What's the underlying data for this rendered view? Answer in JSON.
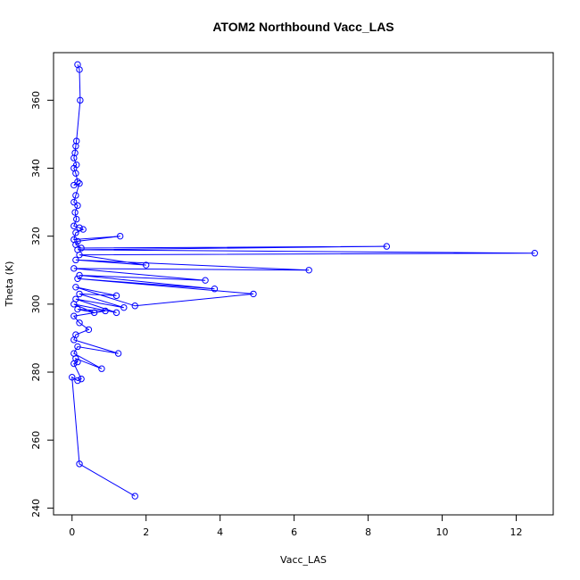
{
  "chart_data": {
    "type": "line",
    "title": "ATOM2 Northbound Vacc_LAS",
    "xlabel": "Vacc_LAS",
    "ylabel": "Theta (K)",
    "xlim": [
      -0.5,
      13.0
    ],
    "ylim": [
      238,
      374
    ],
    "xticks": [
      0,
      2,
      4,
      6,
      8,
      10,
      12
    ],
    "yticks": [
      240,
      260,
      280,
      300,
      320,
      340,
      360
    ],
    "grid": false,
    "legend": "none",
    "line_color": "#0000ff",
    "marker": "open-circle",
    "series": [
      {
        "values": [
          [
            0.15,
            370.5
          ],
          [
            0.2,
            369.0
          ],
          [
            0.22,
            360.0
          ],
          [
            0.12,
            348.0
          ],
          [
            0.1,
            346.5
          ],
          [
            0.08,
            344.5
          ],
          [
            0.05,
            343.0
          ],
          [
            0.12,
            341.0
          ],
          [
            0.05,
            340.0
          ],
          [
            0.1,
            338.5
          ],
          [
            0.15,
            336.0
          ],
          [
            0.05,
            335.0
          ],
          [
            0.2,
            335.5
          ],
          [
            0.1,
            332.0
          ],
          [
            0.05,
            330.0
          ],
          [
            0.15,
            329.0
          ],
          [
            0.08,
            327.0
          ],
          [
            0.12,
            325.0
          ],
          [
            0.05,
            323.0
          ],
          [
            0.2,
            322.5
          ],
          [
            0.3,
            322.0
          ],
          [
            0.1,
            321.0
          ],
          [
            0.05,
            319.0
          ],
          [
            1.3,
            320.0
          ],
          [
            0.15,
            318.5
          ],
          [
            0.1,
            317.5
          ],
          [
            0.25,
            316.5
          ],
          [
            8.5,
            317.0
          ],
          [
            0.15,
            316.0
          ],
          [
            12.5,
            315.0
          ],
          [
            0.2,
            314.5
          ],
          [
            2.0,
            311.5
          ],
          [
            0.1,
            313.0
          ],
          [
            6.4,
            310.0
          ],
          [
            0.05,
            310.5
          ],
          [
            3.6,
            307.0
          ],
          [
            0.2,
            308.5
          ],
          [
            3.85,
            304.5
          ],
          [
            0.15,
            307.5
          ],
          [
            4.9,
            303.0
          ],
          [
            1.7,
            299.5
          ],
          [
            0.1,
            305.0
          ],
          [
            1.2,
            302.5
          ],
          [
            0.2,
            303.0
          ],
          [
            1.4,
            299.0
          ],
          [
            0.1,
            301.5
          ],
          [
            1.2,
            297.5
          ],
          [
            0.05,
            300.0
          ],
          [
            0.6,
            297.5
          ],
          [
            0.15,
            298.5
          ],
          [
            0.9,
            298.0
          ],
          [
            0.05,
            296.5
          ],
          [
            0.2,
            294.5
          ],
          [
            0.45,
            292.5
          ],
          [
            0.1,
            291.0
          ],
          [
            0.05,
            289.5
          ],
          [
            1.25,
            285.5
          ],
          [
            0.15,
            287.5
          ],
          [
            0.05,
            285.5
          ],
          [
            0.8,
            281.0
          ],
          [
            0.1,
            284.0
          ],
          [
            0.15,
            283.0
          ],
          [
            0.05,
            282.5
          ],
          [
            0.25,
            278.0
          ],
          [
            0.15,
            277.5
          ],
          [
            0.0,
            278.5
          ],
          [
            0.2,
            253.0
          ],
          [
            1.7,
            243.5
          ]
        ]
      }
    ]
  }
}
